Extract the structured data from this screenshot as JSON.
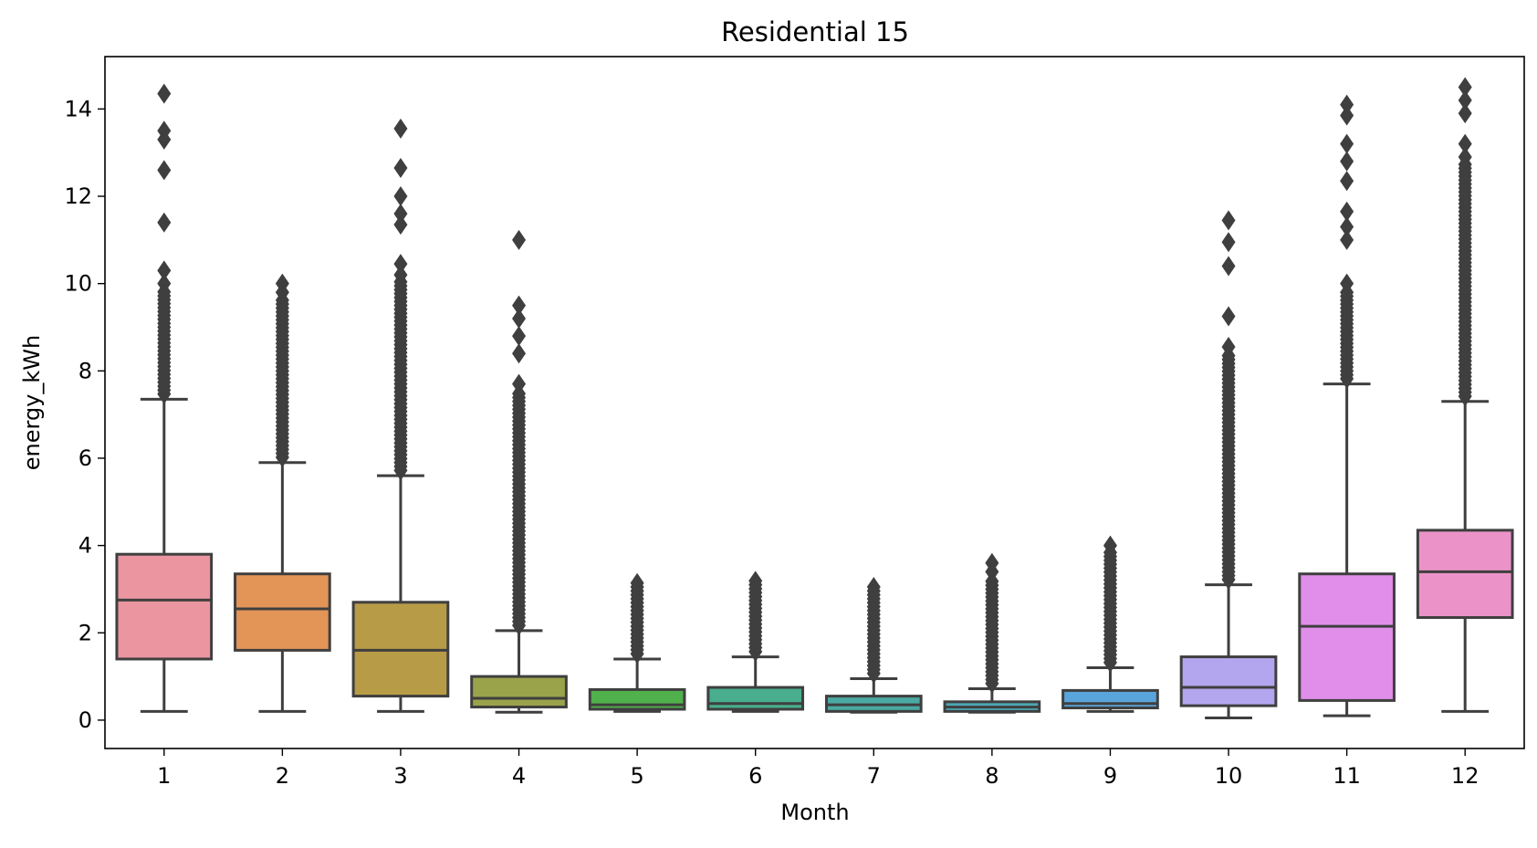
{
  "chart_data": {
    "type": "box",
    "title": "Residential 15",
    "xlabel": "Month",
    "ylabel": "energy_kWh",
    "categories": [
      "1",
      "2",
      "3",
      "4",
      "5",
      "6",
      "7",
      "8",
      "9",
      "10",
      "11",
      "12"
    ],
    "ylim": [
      -0.65,
      15.2
    ],
    "yticks": [
      0,
      2,
      4,
      6,
      8,
      10,
      12,
      14
    ],
    "grid": false,
    "legend": "none",
    "box_edge_color": "#3f3f3f",
    "boxes": [
      {
        "month": "1",
        "color": "#ea95a0",
        "whisker_low": 0.2,
        "q1": 1.4,
        "median": 2.75,
        "q3": 3.8,
        "whisker_high": 7.35,
        "outliers_top_max": 14.35,
        "outliers_sparse": [
          14.35,
          13.5,
          13.3,
          12.6,
          11.4,
          10.3,
          10.0
        ]
      },
      {
        "month": "2",
        "color": "#e39457",
        "whisker_low": 0.2,
        "q1": 1.6,
        "median": 2.55,
        "q3": 3.35,
        "whisker_high": 5.9,
        "outliers_top_max": 10.0,
        "outliers_sparse": [
          10.0,
          9.8
        ]
      },
      {
        "month": "3",
        "color": "#b89b46",
        "whisker_low": 0.2,
        "q1": 0.55,
        "median": 1.6,
        "q3": 2.7,
        "whisker_high": 5.6,
        "outliers_top_max": 13.55,
        "outliers_sparse": [
          13.55,
          12.65,
          12.0,
          11.6,
          11.35,
          10.45,
          10.2
        ]
      },
      {
        "month": "4",
        "color": "#9aa34a",
        "whisker_low": 0.18,
        "q1": 0.3,
        "median": 0.5,
        "q3": 1.0,
        "whisker_high": 2.05,
        "outliers_top_max": 11.0,
        "outliers_sparse": [
          11.0,
          9.5,
          9.2,
          8.8,
          8.4,
          7.7
        ]
      },
      {
        "month": "5",
        "color": "#50b04b",
        "whisker_low": 0.2,
        "q1": 0.25,
        "median": 0.35,
        "q3": 0.7,
        "whisker_high": 1.4,
        "outliers_top_max": 3.2,
        "outliers_sparse": []
      },
      {
        "month": "6",
        "color": "#48ae8d",
        "whisker_low": 0.2,
        "q1": 0.25,
        "median": 0.38,
        "q3": 0.75,
        "whisker_high": 1.45,
        "outliers_top_max": 3.2,
        "outliers_sparse": []
      },
      {
        "month": "7",
        "color": "#4aa9a2",
        "whisker_low": 0.18,
        "q1": 0.2,
        "median": 0.35,
        "q3": 0.55,
        "whisker_high": 0.95,
        "outliers_top_max": 3.05,
        "outliers_sparse": []
      },
      {
        "month": "8",
        "color": "#4ca7b6",
        "whisker_low": 0.18,
        "q1": 0.2,
        "median": 0.3,
        "q3": 0.42,
        "whisker_high": 0.72,
        "outliers_top_max": 3.6,
        "outliers_sparse": [
          3.6,
          3.4
        ]
      },
      {
        "month": "9",
        "color": "#5aa4dc",
        "whisker_low": 0.2,
        "q1": 0.28,
        "median": 0.38,
        "q3": 0.68,
        "whisker_high": 1.2,
        "outliers_top_max": 4.0,
        "outliers_sparse": [
          4.0
        ]
      },
      {
        "month": "10",
        "color": "#b4a5ef",
        "whisker_low": 0.05,
        "q1": 0.33,
        "median": 0.75,
        "q3": 1.45,
        "whisker_high": 3.1,
        "outliers_top_max": 11.45,
        "outliers_sparse": [
          11.45,
          10.95,
          10.4,
          9.25,
          8.55
        ]
      },
      {
        "month": "11",
        "color": "#e08eea",
        "whisker_low": 0.1,
        "q1": 0.45,
        "median": 2.15,
        "q3": 3.35,
        "whisker_high": 7.7,
        "outliers_top_max": 14.1,
        "outliers_sparse": [
          14.1,
          13.85,
          13.2,
          12.8,
          12.35,
          11.65,
          11.3,
          11.0,
          10.0
        ]
      },
      {
        "month": "12",
        "color": "#eb93c8",
        "whisker_low": 0.2,
        "q1": 2.35,
        "median": 3.4,
        "q3": 4.35,
        "whisker_high": 7.3,
        "outliers_top_max": 14.5,
        "outliers_sparse": [
          14.5,
          14.2,
          13.9,
          13.2,
          12.9
        ]
      }
    ]
  }
}
